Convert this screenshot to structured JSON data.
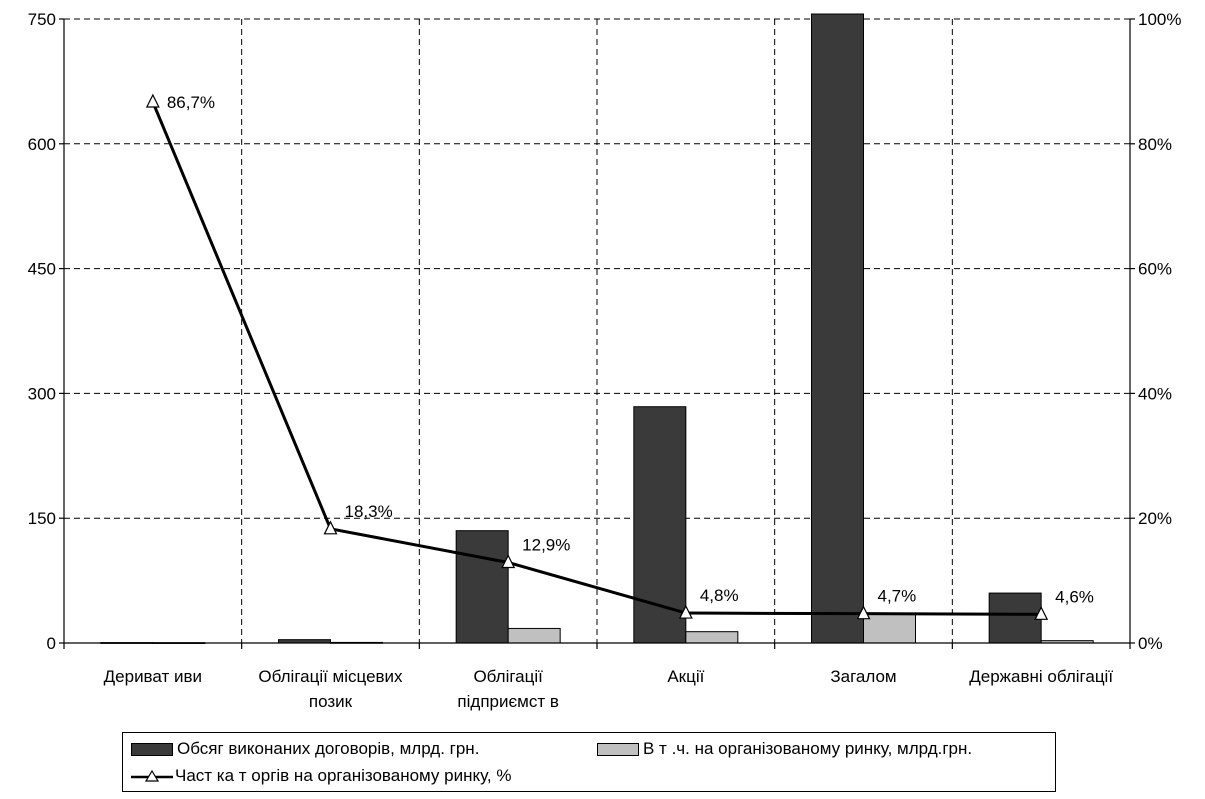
{
  "chart_data": {
    "type": "bar",
    "categories": [
      [
        "Дериват иви"
      ],
      [
        "Облігації місцевих",
        "позик"
      ],
      [
        "Облігації",
        "підприємст в"
      ],
      [
        "Акції"
      ],
      [
        "Загалом"
      ],
      [
        "Державні облігації"
      ]
    ],
    "series": [
      {
        "name": "Обсяг виконаних договорів, млрд. грн.",
        "kind": "bar",
        "axis": "left",
        "color": "#3a3a3a",
        "values": [
          0.5,
          4,
          135,
          284,
          756,
          60
        ]
      },
      {
        "name": "В т .ч. на організованому ринку, млрд.грн.",
        "kind": "bar",
        "axis": "left",
        "color": "#c0c0c0",
        "values": [
          0.4,
          0.7,
          17.5,
          13.6,
          35.5,
          2.8
        ]
      },
      {
        "name": "Част ка т оргів на організованому ринку, %",
        "kind": "line",
        "axis": "right",
        "color": "#000000",
        "marker": "triangle-open",
        "values": [
          86.7,
          18.3,
          12.9,
          4.8,
          4.7,
          4.6
        ]
      }
    ],
    "data_labels": [
      "86,7%",
      "18,3%",
      "12,9%",
      "4,8%",
      "4,7%",
      "4,6%"
    ],
    "y_left": {
      "lim": [
        0,
        750
      ],
      "ticks": [
        "0",
        "150",
        "300",
        "450",
        "600",
        "750"
      ]
    },
    "y_right": {
      "lim": [
        0,
        100
      ],
      "ticks": [
        "0%",
        "20%",
        "40%",
        "60%",
        "80%",
        "100%"
      ]
    },
    "grid": true,
    "legend": "bottom"
  }
}
